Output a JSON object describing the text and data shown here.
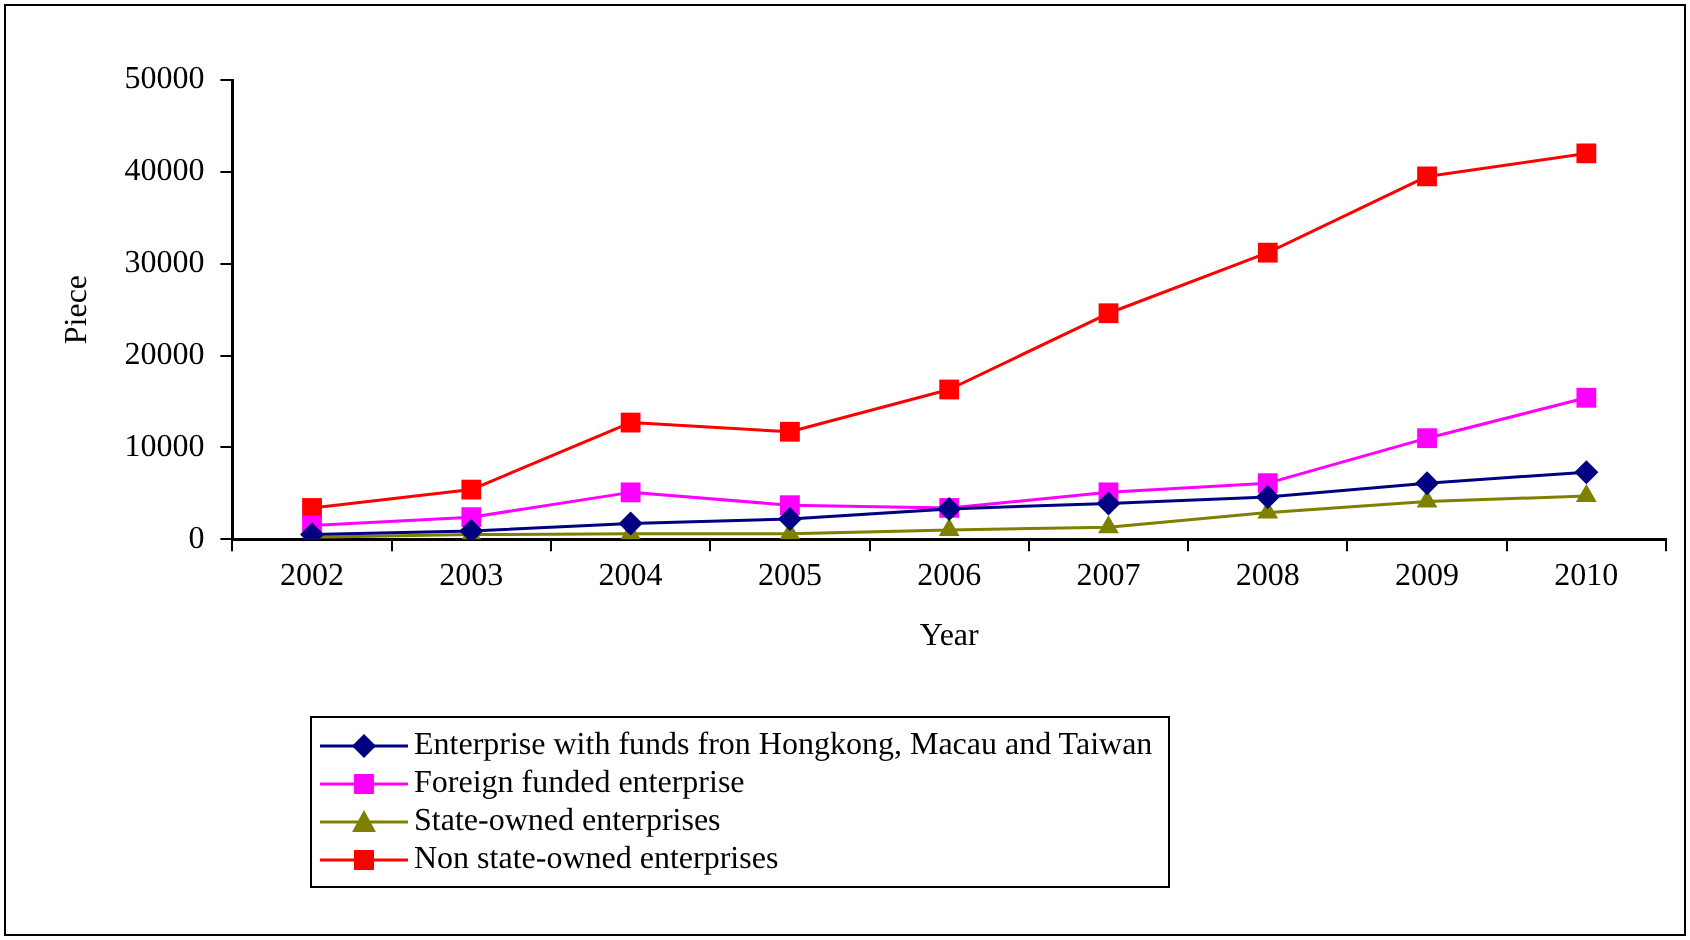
{
  "chart_data": {
    "type": "line",
    "xlabel": "Year",
    "ylabel": "Piece",
    "categories": [
      "2002",
      "2003",
      "2004",
      "2005",
      "2006",
      "2007",
      "2008",
      "2009",
      "2010"
    ],
    "series": [
      {
        "name": "Enterprise with funds fron Hongkong, Macau and Taiwan",
        "color": "#000080",
        "marker": "diamond",
        "values": [
          500,
          900,
          1700,
          2200,
          3300,
          3900,
          4600,
          6100,
          7300
        ]
      },
      {
        "name": "Foreign funded enterprise",
        "color": "#ff00ff",
        "marker": "square",
        "values": [
          1500,
          2400,
          5100,
          3700,
          3400,
          5100,
          6100,
          11000,
          15400
        ]
      },
      {
        "name": "State-owned enterprises",
        "color": "#808000",
        "marker": "triangle",
        "values": [
          200,
          500,
          600,
          600,
          1000,
          1300,
          2900,
          4100,
          4700
        ]
      },
      {
        "name": "Non state-owned enterprises",
        "color": "#ff0000",
        "marker": "square",
        "values": [
          3400,
          5400,
          12700,
          11700,
          16300,
          24600,
          31200,
          39500,
          42000
        ]
      }
    ],
    "ylim": [
      0,
      50000
    ],
    "yticks": [
      0,
      10000,
      20000,
      30000,
      40000,
      50000
    ],
    "grid": false,
    "legend": "bottom"
  }
}
